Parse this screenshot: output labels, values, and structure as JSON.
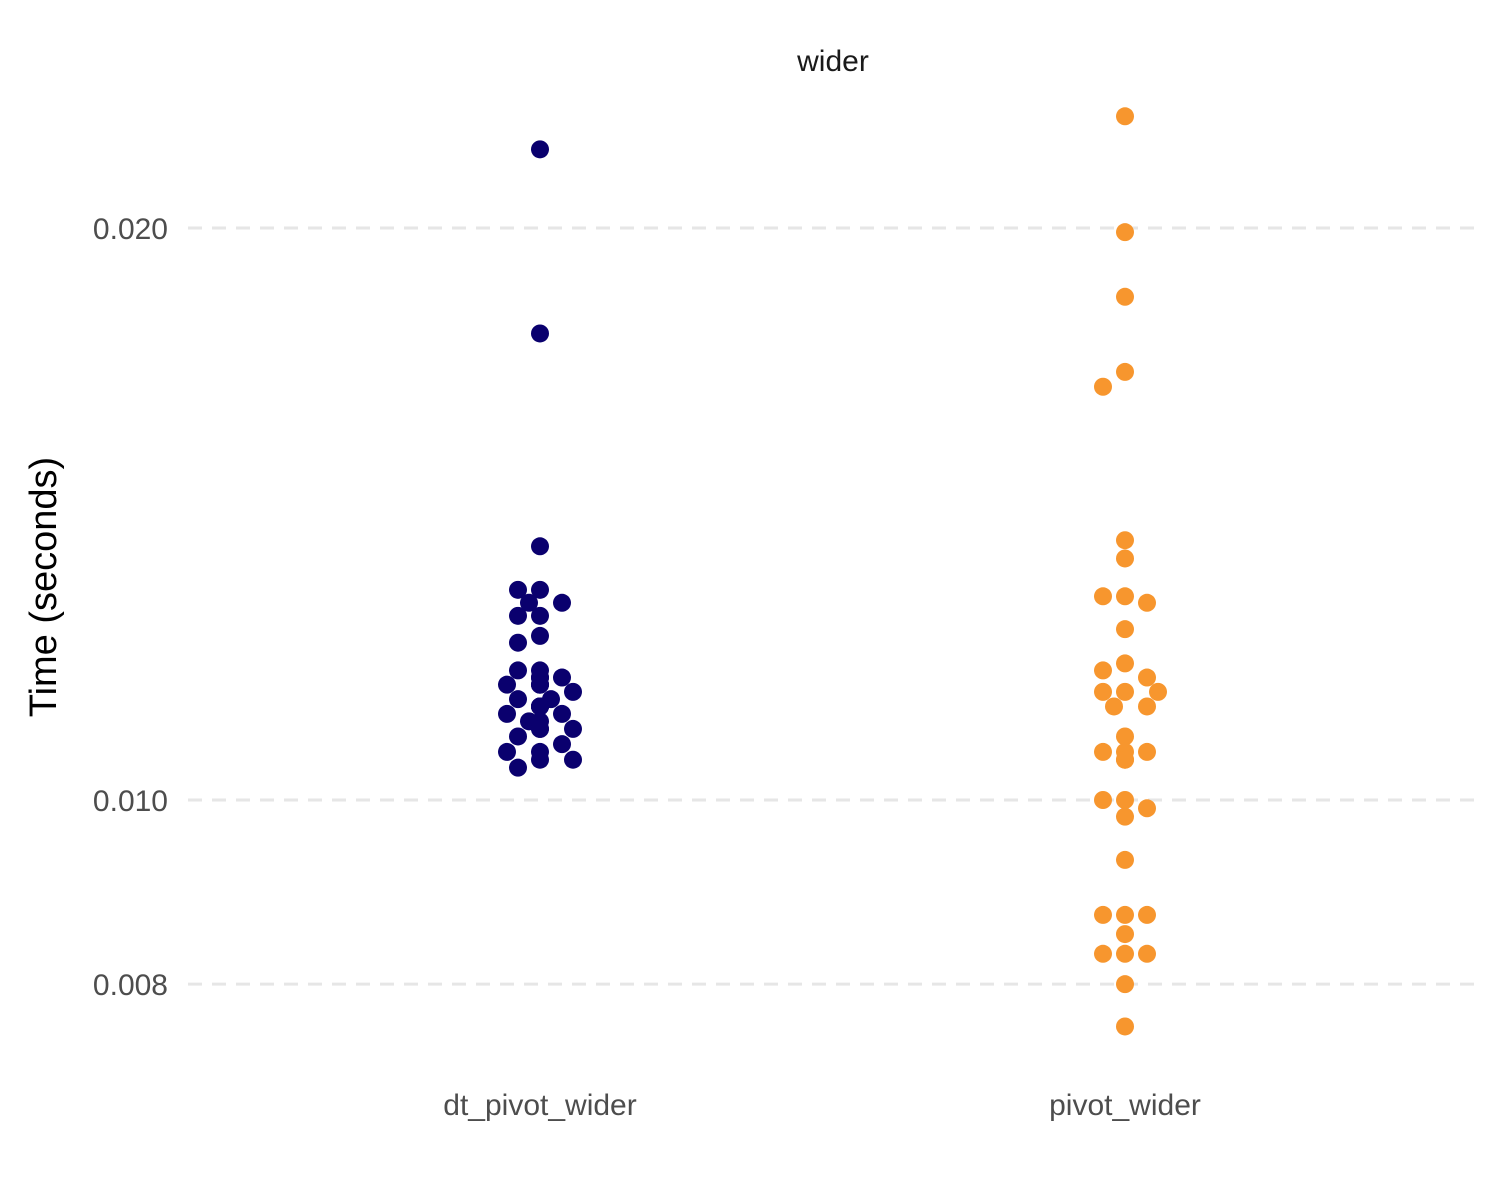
{
  "chart_data": {
    "type": "scatter",
    "facet_title": "wider",
    "xlabel": "",
    "ylabel": "Time (seconds)",
    "y_scale": "log10",
    "ylim": [
      0.0074,
      0.0235
    ],
    "y_ticks": [
      {
        "value": 0.008,
        "label": "0.008"
      },
      {
        "value": 0.01,
        "label": "0.010"
      },
      {
        "value": 0.02,
        "label": "0.020"
      }
    ],
    "grid": true,
    "legend": "none",
    "categories": [
      "dt_pivot_wider",
      "pivot_wider"
    ],
    "series": [
      {
        "category": "dt_pivot_wider",
        "color": "#0a006e",
        "values": [
          0.022,
          0.0176,
          0.0136,
          0.0129,
          0.0129,
          0.0127,
          0.0127,
          0.0125,
          0.0125,
          0.0122,
          0.0121,
          0.0117,
          0.0117,
          0.0116,
          0.0116,
          0.0116,
          0.0115,
          0.0115,
          0.0115,
          0.0115,
          0.0114,
          0.0113,
          0.0113,
          0.0112,
          0.0112,
          0.0112,
          0.0112,
          0.0111,
          0.0111,
          0.011,
          0.011,
          0.0109,
          0.0109,
          0.0109,
          0.0108,
          0.0107,
          0.0106,
          0.0106,
          0.0105,
          0.0105,
          0.0104
        ]
      },
      {
        "category": "pivot_wider",
        "color": "#f7962e",
        "values": [
          0.0229,
          0.0199,
          0.0184,
          0.0168,
          0.0165,
          0.0137,
          0.0134,
          0.0128,
          0.0128,
          0.0127,
          0.0123,
          0.0118,
          0.0117,
          0.0116,
          0.0114,
          0.0114,
          0.0114,
          0.0112,
          0.0112,
          0.0108,
          0.0106,
          0.0106,
          0.0106,
          0.0105,
          0.0105,
          0.01,
          0.01,
          0.0099,
          0.0098,
          0.0093,
          0.0087,
          0.0087,
          0.0087,
          0.0085,
          0.0083,
          0.0083,
          0.0083,
          0.008,
          0.0076
        ]
      }
    ]
  }
}
